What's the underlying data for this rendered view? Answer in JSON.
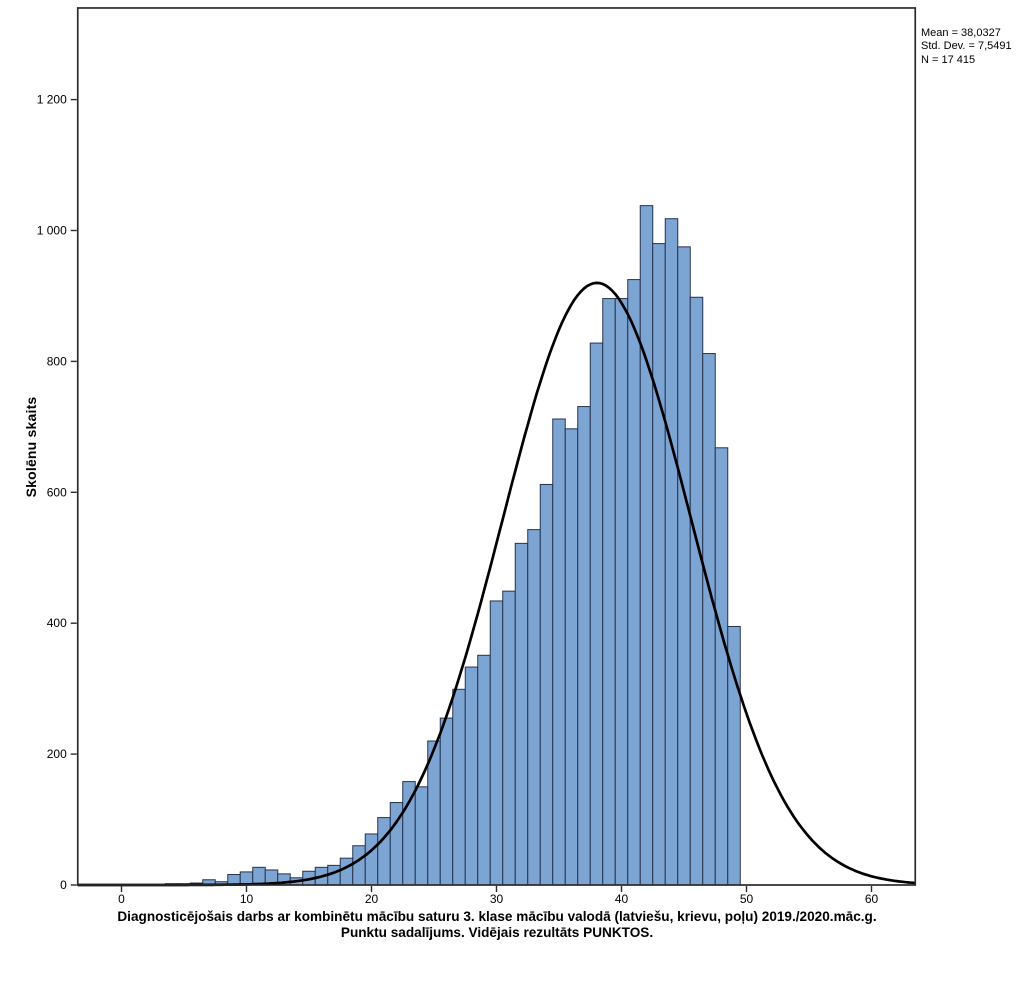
{
  "chart_data": {
    "type": "bar",
    "subtype": "histogram-with-normal-curve",
    "title": "Diagnosticējošais darbs ar kombinētu mācību saturu 3. klase mācību valodā (latviešu, krievu, poļu) 2019./2020.māc.g.",
    "subtitle": "Punktu sadalījums. Vidējais rezultāts PUNKTOS.",
    "xlabel": "",
    "ylabel": "Skolēnu skaits",
    "xlim": [
      -3.5,
      63.5
    ],
    "ylim": [
      0,
      1340
    ],
    "grid": false,
    "legend": "none",
    "bin_width": 1,
    "x": [
      4,
      5,
      6,
      7,
      8,
      9,
      10,
      11,
      12,
      13,
      14,
      15,
      16,
      17,
      18,
      19,
      20,
      21,
      22,
      23,
      24,
      25,
      26,
      27,
      28,
      29,
      30,
      31,
      32,
      33,
      34,
      35,
      36,
      37,
      38,
      39,
      40,
      41,
      42,
      43,
      44,
      45,
      46,
      47,
      48,
      49
    ],
    "values": [
      2,
      2,
      3,
      8,
      5,
      16,
      20,
      27,
      23,
      17,
      11,
      21,
      27,
      30,
      41,
      60,
      78,
      103,
      126,
      158,
      150,
      220,
      255,
      299,
      333,
      351,
      434,
      449,
      522,
      543,
      612,
      712,
      697,
      731,
      828,
      896,
      896,
      925,
      1038,
      980,
      1018,
      975,
      898,
      812,
      668,
      395
    ],
    "x_ticks": [
      0,
      10,
      20,
      30,
      40,
      50,
      60
    ],
    "x_tick_labels": [
      "0",
      "10",
      "20",
      "30",
      "40",
      "50",
      "60"
    ],
    "y_ticks": [
      0,
      200,
      400,
      600,
      800,
      1000,
      1200
    ],
    "y_tick_labels": [
      "0",
      "200",
      "400",
      "600",
      "800",
      "1 000",
      "1 200"
    ],
    "normal_curve": {
      "mean": 38.0327,
      "std_dev": 7.5491,
      "n": 17415,
      "peak": 920
    },
    "stats_box": {
      "mean": "Mean = 38,0327",
      "std_dev": "Std. Dev. = 7,5491",
      "n": "N = 17 415"
    },
    "colors": {
      "bar_fill": "#7CA5D4",
      "bar_border": "#25344E",
      "curve": "#000000",
      "frame": "#2b2b2b",
      "text": "#000000"
    }
  }
}
